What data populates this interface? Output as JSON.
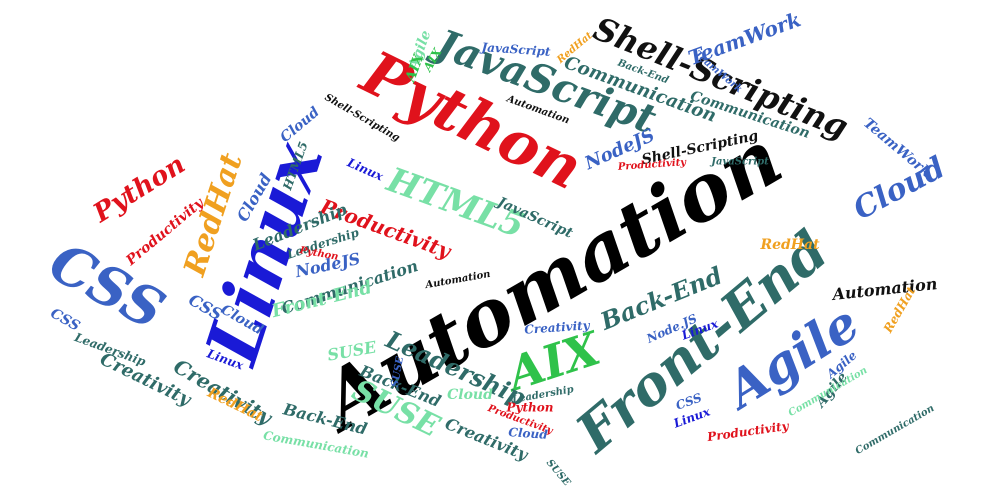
{
  "words": [
    {
      "text": "Automation",
      "color": "#000000"
    },
    {
      "text": "Linux",
      "color": "#1a1ad6"
    },
    {
      "text": "Python",
      "color": "#e0121c"
    },
    {
      "text": "Front-End",
      "color": "#2f6b68"
    },
    {
      "text": "Agile",
      "color": "#3a62c4"
    },
    {
      "text": "CSS",
      "color": "#3a62c4"
    },
    {
      "text": "AIX",
      "color": "#2fc24a"
    },
    {
      "text": "JavaScript",
      "color": "#2f6b68"
    },
    {
      "text": "Shell-Scripting",
      "color": "#111111"
    },
    {
      "text": "HTML5",
      "color": "#78e0a6"
    },
    {
      "text": "Cloud",
      "color": "#3a62c4"
    },
    {
      "text": "RedHat",
      "color": "#f0a020"
    },
    {
      "text": "SUSE",
      "color": "#78e0a6"
    },
    {
      "text": "Back-End",
      "color": "#2f6b68"
    },
    {
      "text": "Leadership",
      "color": "#2f6b68"
    },
    {
      "text": "Creativity",
      "color": "#2f6b68"
    },
    {
      "text": "Productivity",
      "color": "#e0121c"
    },
    {
      "text": "TeamWork",
      "color": "#3a62c4"
    },
    {
      "text": "Communication",
      "color": "#2f6b68"
    },
    {
      "text": "Python",
      "color": "#e0121c"
    },
    {
      "text": "NodeJS",
      "color": "#3a62c4"
    },
    {
      "text": "Cloud",
      "color": "#3a62c4"
    },
    {
      "text": "CSS",
      "color": "#3a62c4"
    },
    {
      "text": "RedHat",
      "color": "#f0a020"
    },
    {
      "text": "Cloud",
      "color": "#3a62c4"
    },
    {
      "text": "Linux",
      "color": "#1a1ad6"
    },
    {
      "text": "Productivity",
      "color": "#e0121c"
    },
    {
      "text": "Automation",
      "color": "#111111"
    },
    {
      "text": "Shell-Scripting",
      "color": "#111111"
    },
    {
      "text": "Back-End",
      "color": "#2f6b68"
    },
    {
      "text": "Creativity",
      "color": "#2f6b68"
    },
    {
      "text": "Leadership",
      "color": "#2f6b68"
    },
    {
      "text": "SUSE",
      "color": "#78e0a6"
    },
    {
      "text": "Communication",
      "color": "#2f6b68"
    },
    {
      "text": "Front-End",
      "color": "#78e0a6"
    },
    {
      "text": "JavaScript",
      "color": "#2f6b68"
    },
    {
      "text": "Communication",
      "color": "#2f6b68"
    },
    {
      "text": "Agile",
      "color": "#78e0a6"
    },
    {
      "text": "RedHat",
      "color": "#f0a020"
    },
    {
      "text": "AIX",
      "color": "#2fc24a"
    },
    {
      "text": "Linux",
      "color": "#1a1ad6"
    },
    {
      "text": "Creativity",
      "color": "#2f6b68"
    },
    {
      "text": "Leadership",
      "color": "#2f6b68"
    },
    {
      "text": "Cloud",
      "color": "#78e0a6"
    },
    {
      "text": "Back-End",
      "color": "#2f6b68"
    },
    {
      "text": "Python",
      "color": "#e0121c"
    },
    {
      "text": "Communication",
      "color": "#78e0a6"
    },
    {
      "text": "Linux",
      "color": "#1a1ad6"
    },
    {
      "text": "Productivity",
      "color": "#e0121c"
    },
    {
      "text": "RedHat",
      "color": "#f0a020"
    },
    {
      "text": "CSS",
      "color": "#3a62c4"
    },
    {
      "text": "Leadership",
      "color": "#2f6b68"
    },
    {
      "text": "Cloud",
      "color": "#3a62c4"
    },
    {
      "text": "TeamWork",
      "color": "#3a62c4"
    },
    {
      "text": "Linux",
      "color": "#1a1ad6"
    },
    {
      "text": "Agile",
      "color": "#2f6b68"
    },
    {
      "text": "SUSE",
      "color": "#3a62c4"
    },
    {
      "text": "NodeJS",
      "color": "#3a62c4"
    },
    {
      "text": "Communication",
      "color": "#78e0a6"
    },
    {
      "text": "Automation",
      "color": "#111111"
    },
    {
      "text": "Productivity",
      "color": "#e0121c"
    },
    {
      "text": "Shell-Scripting",
      "color": "#111111"
    },
    {
      "text": "JavaScript",
      "color": "#3a62c4"
    },
    {
      "text": "Python",
      "color": "#e0121c"
    },
    {
      "text": "HTML5",
      "color": "#2f6b68"
    },
    {
      "text": "Cloud",
      "color": "#3a62c4"
    },
    {
      "text": "Automation",
      "color": "#111111"
    },
    {
      "text": "JavaScript",
      "color": "#2f6b68"
    },
    {
      "text": "Back-End",
      "color": "#2f6b68"
    },
    {
      "text": "Communication",
      "color": "#2f6b68"
    },
    {
      "text": "Productivity",
      "color": "#e0121c"
    },
    {
      "text": "SUSE",
      "color": "#2f6b68"
    },
    {
      "text": "TeamWork",
      "color": "#3a62c4"
    },
    {
      "text": "AIX",
      "color": "#2fc24a"
    },
    {
      "text": "CSS",
      "color": "#3a62c4"
    },
    {
      "text": "Node.JS",
      "color": "#3a62c4"
    },
    {
      "text": "Creativity",
      "color": "#3a62c4"
    },
    {
      "text": "RedHat",
      "color": "#f0a020"
    },
    {
      "text": "Leadership",
      "color": "#2f6b68"
    },
    {
      "text": "Agile",
      "color": "#3a62c4"
    }
  ]
}
